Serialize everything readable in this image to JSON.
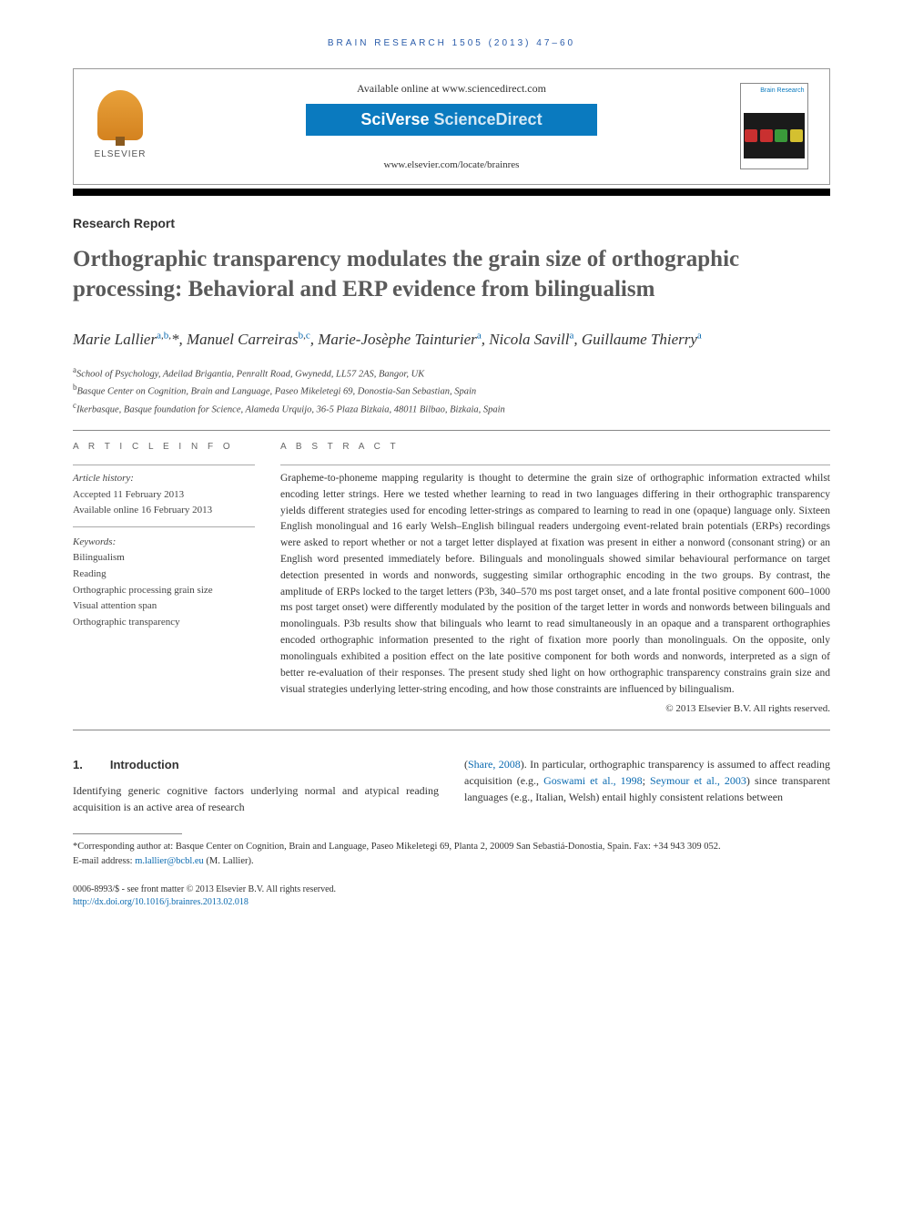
{
  "running_head": "BRAIN RESEARCH 1505 (2013) 47–60",
  "header": {
    "publisher": "ELSEVIER",
    "available_online": "Available online at www.sciencedirect.com",
    "platform_a": "SciVerse ",
    "platform_b": "ScienceDirect",
    "journal_url": "www.elsevier.com/locate/brainres",
    "journal_cover_title": "Brain Research"
  },
  "article": {
    "type": "Research Report",
    "title": "Orthographic transparency modulates the grain size of orthographic processing: Behavioral and ERP evidence from bilingualism",
    "authors_html": "Marie Lallier<sup><a>a</a>,<a>b</a>,</sup>*, Manuel Carreiras<sup><a>b</a>,<a>c</a></sup>, Marie-Josèphe Tainturier<sup><a>a</a></sup>, Nicola Savill<sup><a>a</a></sup>, Guillaume Thierry<sup><a>a</a></sup>",
    "affiliations": {
      "a": "School of Psychology, Adeilad Brigantia, Penrallt Road, Gwynedd, LL57 2AS, Bangor, UK",
      "b": "Basque Center on Cognition, Brain and Language, Paseo Mikeletegi 69, Donostia-San Sebastian, Spain",
      "c": "Ikerbasque, Basque foundation for Science, Alameda Urquijo, 36-5 Plaza Bizkaia, 48011 Bilbao, Bizkaia, Spain"
    }
  },
  "info": {
    "heading": "A R T I C L E  I N F O",
    "history_label": "Article history:",
    "accepted": "Accepted 11 February 2013",
    "online": "Available online 16 February 2013",
    "keywords_label": "Keywords:",
    "keywords": [
      "Bilingualism",
      "Reading",
      "Orthographic processing grain size",
      "Visual attention span",
      "Orthographic transparency"
    ]
  },
  "abstract": {
    "heading": "A B S T R A C T",
    "text": "Grapheme-to-phoneme mapping regularity is thought to determine the grain size of orthographic information extracted whilst encoding letter strings. Here we tested whether learning to read in two languages differing in their orthographic transparency yields different strategies used for encoding letter-strings as compared to learning to read in one (opaque) language only. Sixteen English monolingual and 16 early Welsh–English bilingual readers undergoing event-related brain potentials (ERPs) recordings were asked to report whether or not a target letter displayed at fixation was present in either a nonword (consonant string) or an English word presented immediately before. Bilinguals and monolinguals showed similar behavioural performance on target detection presented in words and nonwords, suggesting similar orthographic encoding in the two groups. By contrast, the amplitude of ERPs locked to the target letters (P3b, 340–570 ms post target onset, and a late frontal positive component 600–1000 ms post target onset) were differently modulated by the position of the target letter in words and nonwords between bilinguals and monolinguals. P3b results show that bilinguals who learnt to read simultaneously in an opaque and a transparent orthographies encoded orthographic information presented to the right of fixation more poorly than monolinguals. On the opposite, only monolinguals exhibited a position effect on the late positive component for both words and nonwords, interpreted as a sign of better re-evaluation of their responses. The present study shed light on how orthographic transparency constrains grain size and visual strategies underlying letter-string encoding, and how those constraints are influenced by bilingualism.",
    "copyright": "© 2013 Elsevier B.V. All rights reserved."
  },
  "body": {
    "sec1_num": "1.",
    "sec1_title": "Introduction",
    "left_para": "Identifying generic cognitive factors underlying normal and atypical reading acquisition is an active area of research",
    "right_para_1": "(",
    "right_link_1": "Share, 2008",
    "right_para_2": "). In particular, orthographic transparency is assumed to affect reading acquisition (e.g., ",
    "right_link_2": "Goswami et al., 1998",
    "right_para_3": "; ",
    "right_link_3": "Seymour et al., 2003",
    "right_para_4": ") since transparent languages (e.g., Italian, Welsh) entail highly consistent relations between"
  },
  "footnote": {
    "corr": "*Corresponding author at: Basque Center on Cognition, Brain and Language, Paseo Mikeletegi 69, Planta 2, 20009 San Sebastiá-Donostia, Spain. Fax: +34 943 309 052.",
    "email_label": "E-mail address: ",
    "email": "m.lallier@bcbl.eu",
    "email_who": " (M. Lallier)."
  },
  "bottom": {
    "line1": "0006-8993/$ - see front matter © 2013 Elsevier B.V. All rights reserved.",
    "doi": "http://dx.doi.org/10.1016/j.brainres.2013.02.018"
  },
  "colors": {
    "link": "#0a6ab0",
    "brand_blue": "#0a7abf",
    "title_gray": "#5a5a5a"
  }
}
